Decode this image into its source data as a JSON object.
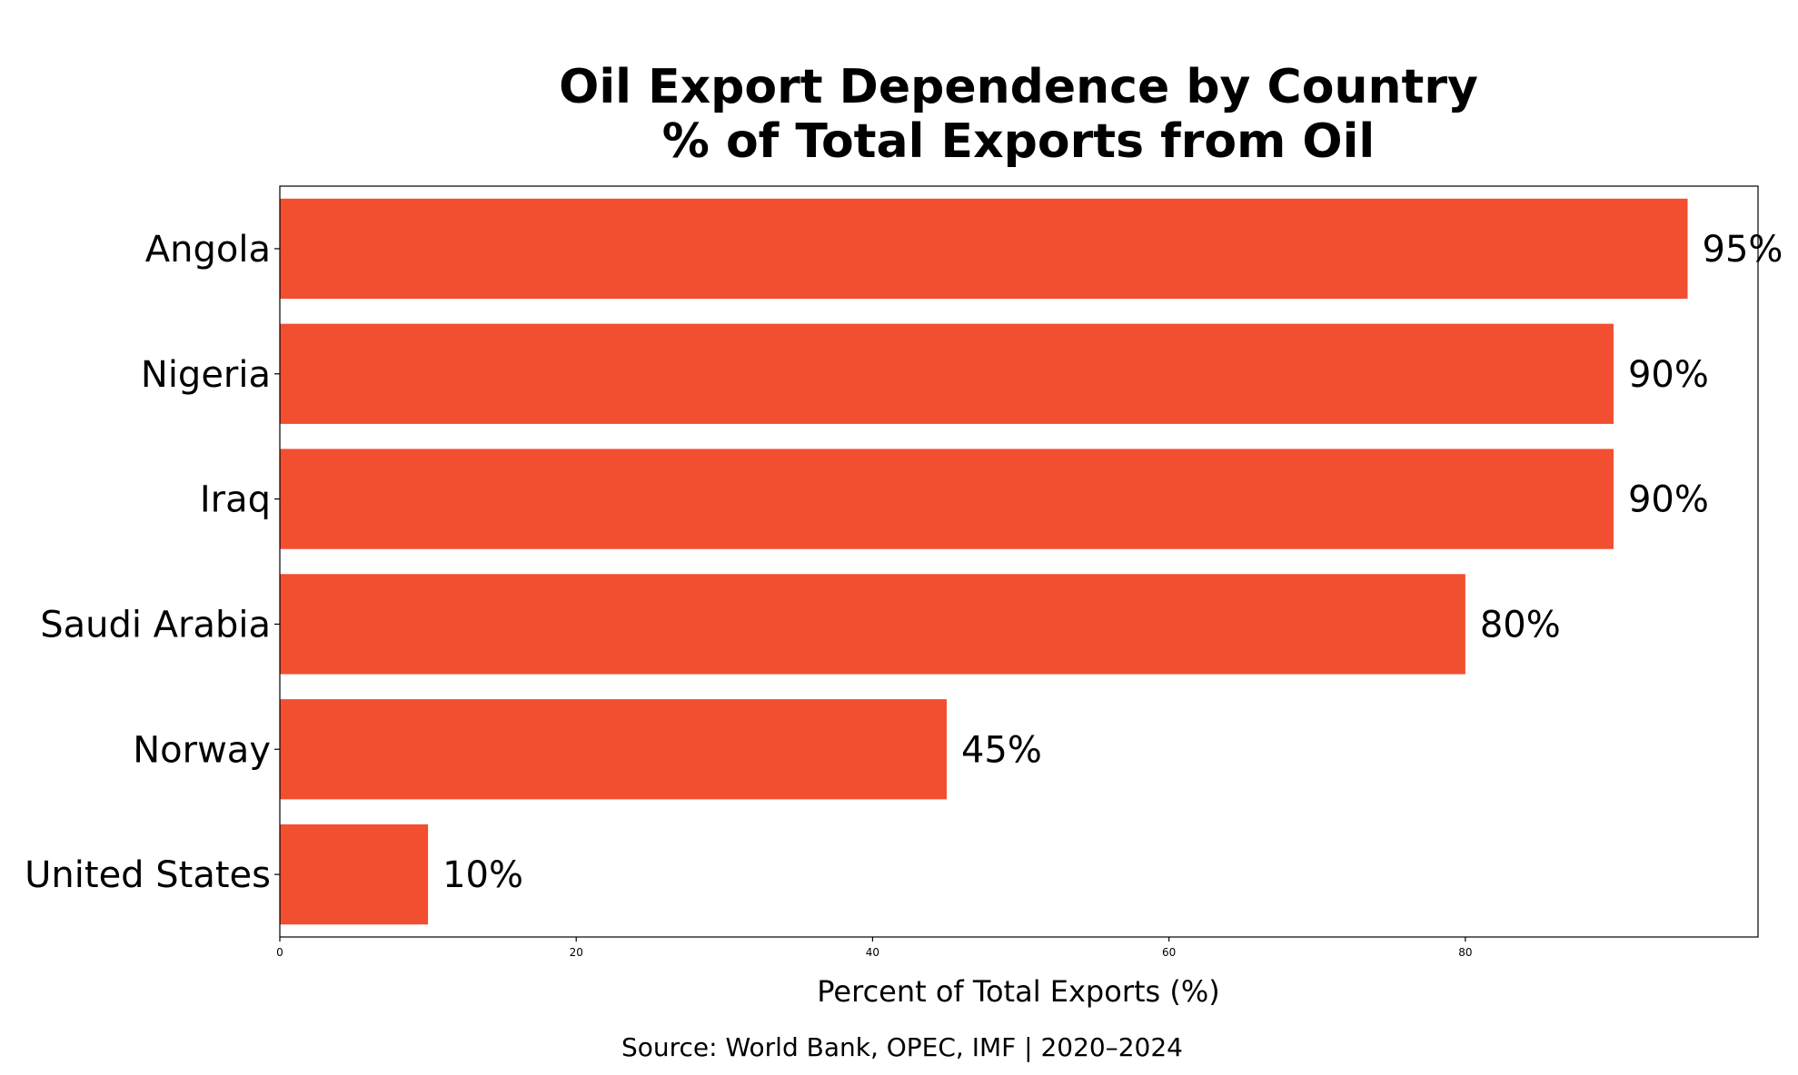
{
  "chart_data": {
    "type": "bar",
    "orientation": "horizontal",
    "title": "Oil Export Dependence by Country",
    "subtitle": "% of Total Exports from Oil",
    "categories": [
      "Angola",
      "Nigeria",
      "Iraq",
      "Saudi Arabia",
      "Norway",
      "United States"
    ],
    "values": [
      95,
      90,
      90,
      80,
      45,
      10
    ],
    "data_labels": [
      "95%",
      "90%",
      "90%",
      "80%",
      "45%",
      "10%"
    ],
    "xlabel": "Percent of Total Exports (%)",
    "ylabel": "",
    "xlim": [
      0,
      99.75
    ],
    "xticks": [
      0,
      20,
      40,
      60,
      80
    ],
    "xtick_labels": [
      "0",
      "20",
      "40",
      "60",
      "80"
    ],
    "grid": false,
    "bar_color": "#F24E30",
    "source": "Source: World Bank, OPEC, IMF | 2020–2024"
  }
}
